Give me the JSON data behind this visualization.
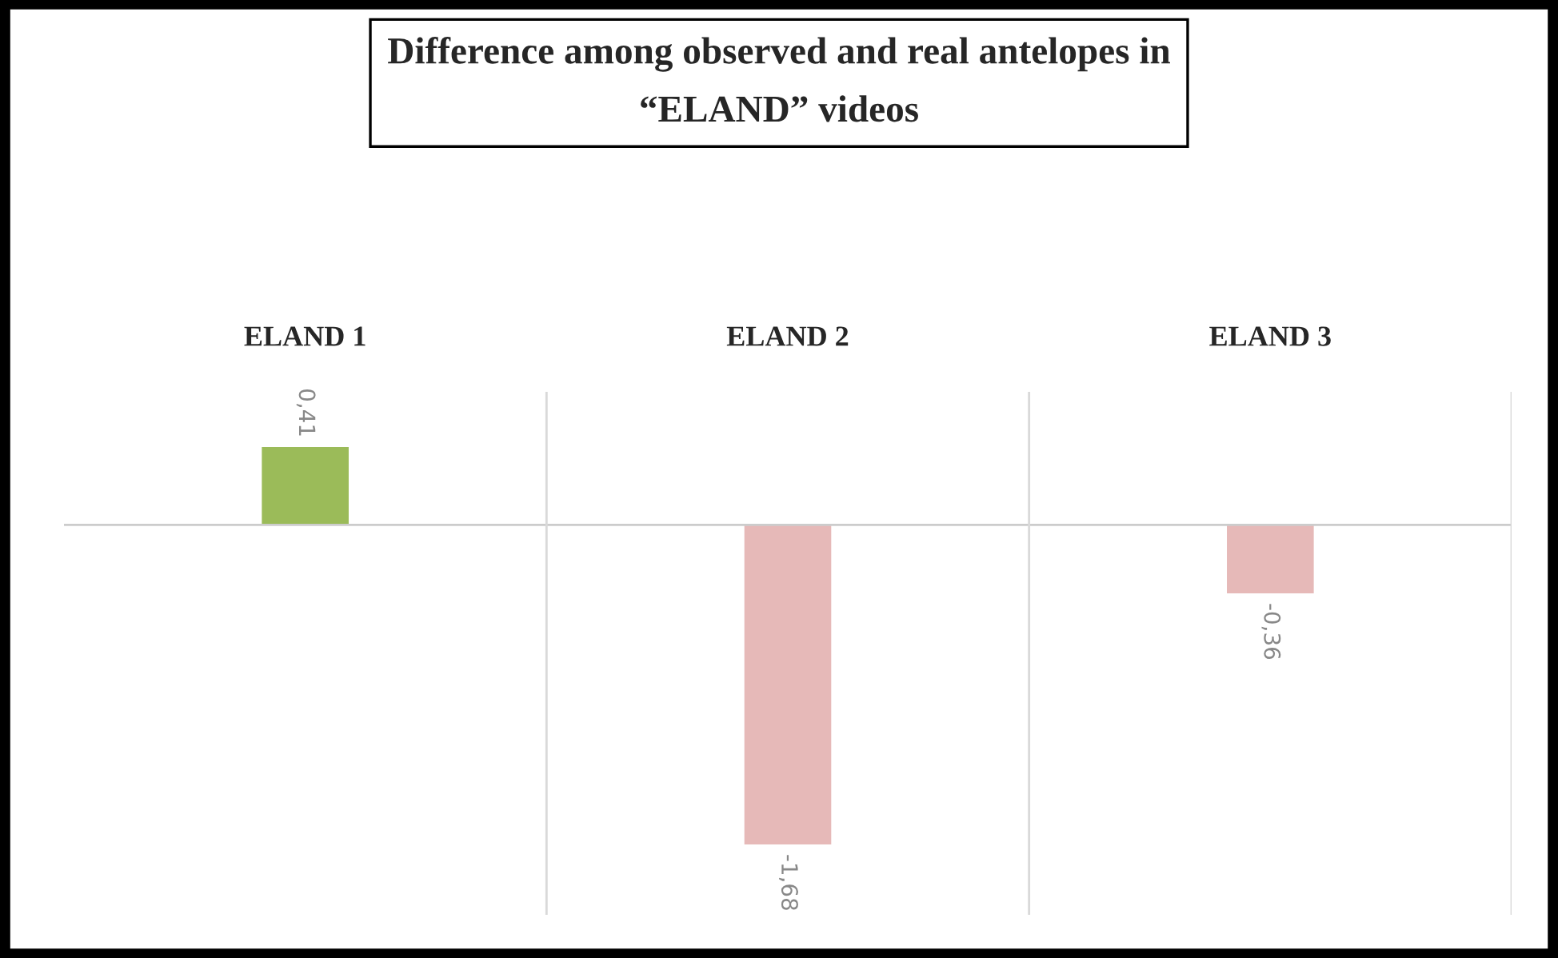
{
  "chart_data": {
    "type": "bar",
    "title": "Difference among observed and real antelopes in\n“ELAND” videos",
    "categories": [
      "ELAND 1",
      "ELAND 2",
      "ELAND 3"
    ],
    "values": [
      0.41,
      -1.68,
      -0.36
    ],
    "colors": [
      "#9bbb59",
      "#e6b9b8",
      "#e6b9b8"
    ],
    "value_labels": [
      "0,41",
      "-1,68",
      "-0,36"
    ],
    "ylim": [
      -2.05,
      0.7
    ]
  }
}
